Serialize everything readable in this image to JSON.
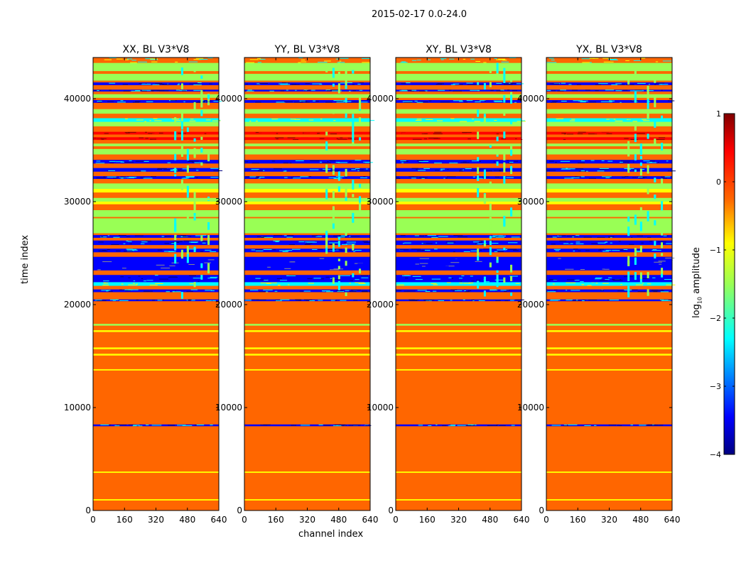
{
  "figure": {
    "suptitle": "2015-02-17 0.0-24.0",
    "xlabel": "channel index",
    "ylabel": "time index",
    "colorbar_label_base": "log",
    "colorbar_label_sub": "10",
    "colorbar_label_rest": " amplitude"
  },
  "chart_data": [
    {
      "type": "heatmap",
      "title": "XX, BL V3*V8",
      "x_ticks": [
        "0",
        "160",
        "320",
        "480",
        "640"
      ],
      "y_ticks": [
        "0",
        "10000",
        "20000",
        "30000",
        "40000"
      ],
      "xlim": [
        0,
        640
      ],
      "ylim": [
        0,
        44000
      ]
    },
    {
      "type": "heatmap",
      "title": "YY, BL V3*V8",
      "x_ticks": [
        "0",
        "160",
        "320",
        "480",
        "640"
      ],
      "y_ticks": [
        "0",
        "10000",
        "20000",
        "30000",
        "40000"
      ],
      "xlim": [
        0,
        640
      ],
      "ylim": [
        0,
        44000
      ]
    },
    {
      "type": "heatmap",
      "title": "XY, BL V3*V8",
      "x_ticks": [
        "0",
        "160",
        "320",
        "480",
        "640"
      ],
      "y_ticks": [
        "0",
        "10000",
        "20000",
        "30000",
        "40000"
      ],
      "xlim": [
        0,
        640
      ],
      "ylim": [
        0,
        44000
      ]
    },
    {
      "type": "heatmap",
      "title": "YX, BL V3*V8",
      "x_ticks": [
        "0",
        "160",
        "320",
        "480",
        "640"
      ],
      "y_ticks": [
        "0",
        "10000",
        "20000",
        "30000",
        "40000"
      ],
      "xlim": [
        0,
        640
      ],
      "ylim": [
        0,
        44000
      ]
    }
  ],
  "colorbar": {
    "colormap": "jet",
    "range": [
      -4,
      1
    ],
    "ticks": [
      "1",
      "0",
      "−1",
      "−2",
      "−3",
      "−4"
    ],
    "colors": {
      "dark_red": "#800000",
      "red": "#ff0000",
      "orange": "#ff6600",
      "yellow": "#ffff00",
      "green": "#99ff55",
      "cyan": "#00ffff",
      "blue": "#0000ff",
      "dark_blue": "#000080"
    }
  }
}
